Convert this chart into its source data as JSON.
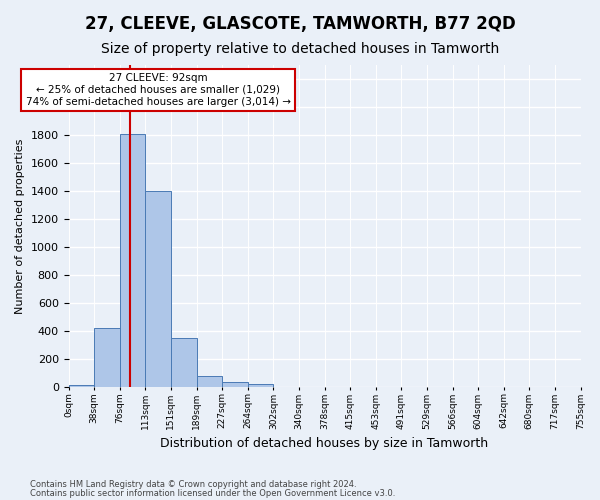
{
  "title": "27, CLEEVE, GLASCOTE, TAMWORTH, B77 2QD",
  "subtitle": "Size of property relative to detached houses in Tamworth",
  "xlabel": "Distribution of detached houses by size in Tamworth",
  "ylabel": "Number of detached properties",
  "annotation_title": "27 CLEEVE: 92sqm",
  "annotation_line1": "← 25% of detached houses are smaller (1,029)",
  "annotation_line2": "74% of semi-detached houses are larger (3,014) →",
  "footer_line1": "Contains HM Land Registry data © Crown copyright and database right 2024.",
  "footer_line2": "Contains public sector information licensed under the Open Government Licence v3.0.",
  "bin_labels": [
    "0sqm",
    "38sqm",
    "76sqm",
    "113sqm",
    "151sqm",
    "189sqm",
    "227sqm",
    "264sqm",
    "302sqm",
    "340sqm",
    "378sqm",
    "415sqm",
    "453sqm",
    "491sqm",
    "529sqm",
    "566sqm",
    "604sqm",
    "642sqm",
    "680sqm",
    "717sqm",
    "755sqm"
  ],
  "bar_values": [
    15,
    420,
    1810,
    1400,
    350,
    80,
    35,
    20,
    0,
    0,
    0,
    0,
    0,
    0,
    0,
    0,
    0,
    0,
    0,
    0
  ],
  "bar_color": "#aec6e8",
  "bar_edge_color": "#4a7ab5",
  "property_line_x": 2.42,
  "ylim": [
    0,
    2300
  ],
  "background_color": "#eaf0f8",
  "plot_background": "#eaf0f8",
  "grid_color": "#ffffff",
  "title_fontsize": 12,
  "subtitle_fontsize": 10,
  "annotation_box_color": "#ffffff",
  "annotation_box_edge": "#cc0000",
  "red_line_color": "#cc0000"
}
